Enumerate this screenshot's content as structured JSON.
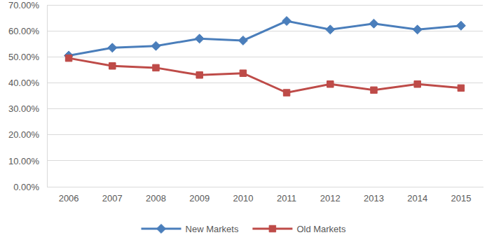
{
  "chart_data": {
    "type": "line",
    "categories": [
      "2006",
      "2007",
      "2008",
      "2009",
      "2010",
      "2011",
      "2012",
      "2013",
      "2014",
      "2015"
    ],
    "series": [
      {
        "name": "New Markets",
        "color": "#4a7ebb",
        "marker": "diamond",
        "values": [
          50.5,
          53.5,
          54.2,
          57.0,
          56.3,
          63.8,
          60.5,
          62.8,
          60.5,
          62.0
        ]
      },
      {
        "name": "Old Markets",
        "color": "#be4b48",
        "marker": "square",
        "values": [
          49.5,
          46.5,
          45.8,
          43.0,
          43.7,
          36.2,
          39.5,
          37.2,
          39.5,
          38.0
        ]
      }
    ],
    "ylim": [
      0,
      70
    ],
    "yticks": [
      {
        "value": 0,
        "label": "0.00%"
      },
      {
        "value": 10,
        "label": "10.00%"
      },
      {
        "value": 20,
        "label": "20.00%"
      },
      {
        "value": 30,
        "label": "30.00%"
      },
      {
        "value": 40,
        "label": "40.00%"
      },
      {
        "value": 50,
        "label": "50.00%"
      },
      {
        "value": 60,
        "label": "60.00%"
      },
      {
        "value": 70,
        "label": "70.00%"
      }
    ],
    "grid": true,
    "legend": "bottom"
  }
}
